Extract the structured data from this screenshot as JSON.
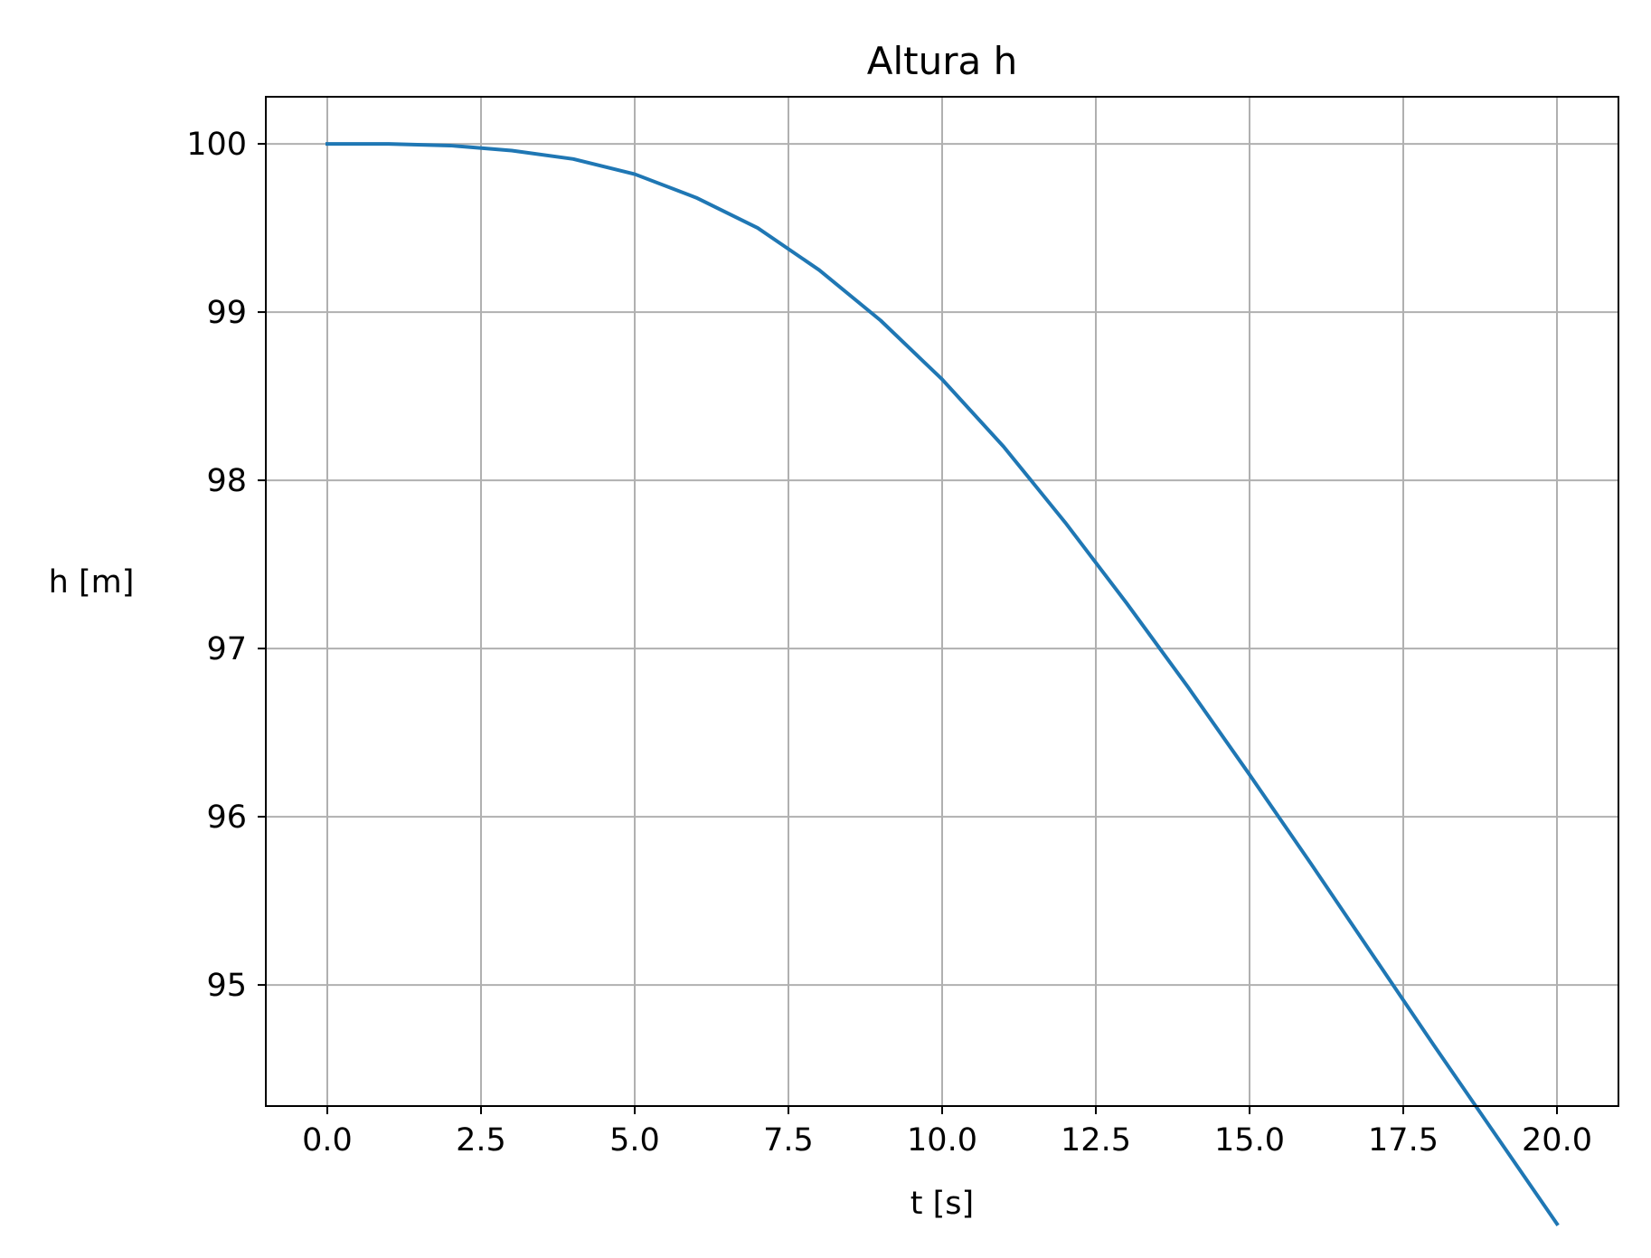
{
  "chart_data": {
    "type": "line",
    "title": "Altura h",
    "xlabel": "t [s]",
    "ylabel": "h [m]",
    "xlim": [
      -1.0,
      21.0
    ],
    "ylim": [
      94.28,
      100.28
    ],
    "x_ticks": [
      0.0,
      2.5,
      5.0,
      7.5,
      10.0,
      12.5,
      15.0,
      17.5,
      20.0
    ],
    "x_tick_labels": [
      "0.0",
      "2.5",
      "5.0",
      "7.5",
      "10.0",
      "12.5",
      "15.0",
      "17.5",
      "20.0"
    ],
    "y_ticks": [
      95,
      96,
      97,
      98,
      99,
      100
    ],
    "y_tick_labels": [
      "95",
      "96",
      "97",
      "98",
      "99",
      "100"
    ],
    "grid": true,
    "colors": {
      "line": "#1f77b4",
      "grid": "#b0b0b0",
      "axes": "#000000"
    },
    "series": [
      {
        "x": [
          0,
          1,
          2,
          3,
          4,
          5,
          6,
          7,
          8,
          9,
          10,
          11,
          12,
          13,
          14,
          15,
          16,
          17,
          18,
          19,
          20
        ],
        "y": [
          100.0,
          100.0,
          99.99,
          99.96,
          99.91,
          99.82,
          99.68,
          99.5,
          99.25,
          98.95,
          98.6,
          98.2,
          97.75,
          97.27,
          96.77,
          96.25,
          95.72,
          95.18,
          94.64,
          94.11,
          93.58
        ]
      }
    ]
  }
}
